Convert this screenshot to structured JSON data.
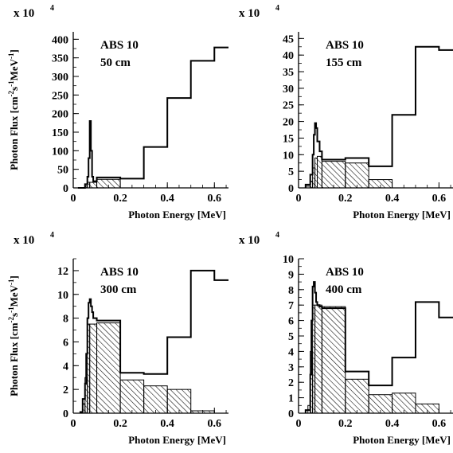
{
  "chart_data": [
    {
      "type": "histogram",
      "annotation_lines": [
        "ABS 10",
        "50 cm"
      ],
      "y_multiplier": "x 10",
      "y_exponent": "4",
      "ylabel": "Photon Flux  [cm-2s-1MeV-1]",
      "xlabel": "Photon Energy  [MeV]",
      "xlim": [
        0,
        0.66
      ],
      "ylim": [
        0,
        420
      ],
      "xticks": [
        0,
        0.2,
        0.4,
        0.6
      ],
      "xtick_labels": [
        "0",
        "0.2",
        "0.4",
        "0.6"
      ],
      "yticks": [
        0,
        50,
        100,
        150,
        200,
        250,
        300,
        350,
        400
      ],
      "ytick_labels": [
        "0",
        "50",
        "100",
        "150",
        "200",
        "250",
        "300",
        "350",
        "400"
      ],
      "series": [
        {
          "style": "solid line",
          "steps": [
            [
              0.02,
              0.05,
              0
            ],
            [
              0.05,
              0.06,
              10
            ],
            [
              0.06,
              0.065,
              30
            ],
            [
              0.065,
              0.07,
              80
            ],
            [
              0.07,
              0.075,
              180
            ],
            [
              0.075,
              0.08,
              100
            ],
            [
              0.08,
              0.085,
              30
            ],
            [
              0.085,
              0.1,
              18
            ],
            [
              0.1,
              0.2,
              28
            ],
            [
              0.2,
              0.3,
              25
            ],
            [
              0.3,
              0.4,
              110
            ],
            [
              0.4,
              0.5,
              242
            ],
            [
              0.5,
              0.6,
              342
            ],
            [
              0.6,
              0.66,
              378
            ]
          ]
        },
        {
          "style": "hatched",
          "steps": [
            [
              0.05,
              0.06,
              5
            ],
            [
              0.06,
              0.07,
              15
            ],
            [
              0.07,
              0.1,
              15
            ],
            [
              0.1,
              0.2,
              23
            ]
          ]
        }
      ]
    },
    {
      "type": "histogram",
      "annotation_lines": [
        "ABS 10",
        "155 cm"
      ],
      "y_multiplier": "x 10",
      "y_exponent": "4",
      "ylabel": "",
      "xlabel": "Photon Energy  [MeV]",
      "xlim": [
        0,
        0.66
      ],
      "ylim": [
        0,
        47
      ],
      "xticks": [
        0,
        0.2,
        0.4,
        0.6
      ],
      "xtick_labels": [
        "0",
        "0.2",
        "0.4",
        "0.6"
      ],
      "yticks": [
        0,
        5,
        10,
        15,
        20,
        25,
        30,
        35,
        40,
        45
      ],
      "ytick_labels": [
        "0",
        "5",
        "10",
        "15",
        "20",
        "25",
        "30",
        "35",
        "40",
        "45"
      ],
      "series": [
        {
          "style": "solid line",
          "steps": [
            [
              0.03,
              0.05,
              1
            ],
            [
              0.05,
              0.06,
              4
            ],
            [
              0.06,
              0.065,
              10
            ],
            [
              0.065,
              0.07,
              16
            ],
            [
              0.07,
              0.075,
              19.5
            ],
            [
              0.075,
              0.08,
              18
            ],
            [
              0.08,
              0.09,
              14
            ],
            [
              0.09,
              0.1,
              11
            ],
            [
              0.1,
              0.2,
              8.5
            ],
            [
              0.2,
              0.3,
              9
            ],
            [
              0.3,
              0.4,
              6.5
            ],
            [
              0.4,
              0.5,
              22
            ],
            [
              0.5,
              0.6,
              42.5
            ],
            [
              0.6,
              0.66,
              41.5
            ]
          ]
        },
        {
          "style": "hatched",
          "steps": [
            [
              0.03,
              0.05,
              0.5
            ],
            [
              0.05,
              0.06,
              2
            ],
            [
              0.06,
              0.07,
              6
            ],
            [
              0.07,
              0.08,
              9
            ],
            [
              0.08,
              0.1,
              9.5
            ],
            [
              0.1,
              0.2,
              8
            ],
            [
              0.2,
              0.3,
              7.5
            ],
            [
              0.3,
              0.4,
              2.5
            ]
          ]
        }
      ]
    },
    {
      "type": "histogram",
      "annotation_lines": [
        "ABS 10",
        "300 cm"
      ],
      "y_multiplier": "x 10",
      "y_exponent": "4",
      "ylabel": "Photon Flux  [cm-2s-1MeV-1]",
      "xlabel": "Photon Energy  [MeV]",
      "xlim": [
        0,
        0.66
      ],
      "ylim": [
        0,
        13
      ],
      "xticks": [
        0,
        0.2,
        0.4,
        0.6
      ],
      "xtick_labels": [
        "0",
        "0.2",
        "0.4",
        "0.6"
      ],
      "yticks": [
        0,
        2,
        4,
        6,
        8,
        10,
        12
      ],
      "ytick_labels": [
        "0",
        "2",
        "4",
        "6",
        "8",
        "10",
        "12"
      ],
      "series": [
        {
          "style": "solid line",
          "steps": [
            [
              0.03,
              0.04,
              0.1
            ],
            [
              0.04,
              0.05,
              1.2
            ],
            [
              0.05,
              0.055,
              2.5
            ],
            [
              0.055,
              0.06,
              5
            ],
            [
              0.06,
              0.065,
              8
            ],
            [
              0.065,
              0.07,
              9.3
            ],
            [
              0.07,
              0.075,
              9.6
            ],
            [
              0.075,
              0.08,
              9
            ],
            [
              0.08,
              0.085,
              8.5
            ],
            [
              0.085,
              0.1,
              8
            ],
            [
              0.1,
              0.2,
              7.8
            ],
            [
              0.2,
              0.3,
              3.4
            ],
            [
              0.3,
              0.4,
              3.3
            ],
            [
              0.4,
              0.5,
              6.4
            ],
            [
              0.5,
              0.6,
              12
            ],
            [
              0.6,
              0.66,
              11.2
            ]
          ]
        },
        {
          "style": "hatched",
          "steps": [
            [
              0.04,
              0.05,
              0.8
            ],
            [
              0.05,
              0.06,
              3
            ],
            [
              0.06,
              0.07,
              7.5
            ],
            [
              0.07,
              0.1,
              7.5
            ],
            [
              0.1,
              0.2,
              7.6
            ],
            [
              0.2,
              0.3,
              2.8
            ],
            [
              0.3,
              0.4,
              2.3
            ],
            [
              0.4,
              0.5,
              2
            ],
            [
              0.5,
              0.6,
              0.2
            ]
          ]
        }
      ]
    },
    {
      "type": "histogram",
      "annotation_lines": [
        "ABS 10",
        "400 cm"
      ],
      "y_multiplier": "x 10",
      "y_exponent": "4",
      "ylabel": "",
      "xlabel": "Photon Energy  [MeV]",
      "xlim": [
        0,
        0.66
      ],
      "ylim": [
        0,
        10
      ],
      "xticks": [
        0,
        0.2,
        0.4,
        0.6
      ],
      "xtick_labels": [
        "0",
        "0.2",
        "0.4",
        "0.6"
      ],
      "yticks": [
        0,
        1,
        2,
        3,
        4,
        5,
        6,
        7,
        8,
        9,
        10
      ],
      "ytick_labels": [
        "0",
        "1",
        "2",
        "3",
        "4",
        "5",
        "6",
        "7",
        "8",
        "9",
        "10"
      ],
      "series": [
        {
          "style": "solid line",
          "steps": [
            [
              0.03,
              0.05,
              0.2
            ],
            [
              0.05,
              0.055,
              2.5
            ],
            [
              0.055,
              0.06,
              6
            ],
            [
              0.06,
              0.065,
              8.2
            ],
            [
              0.065,
              0.07,
              8.5
            ],
            [
              0.07,
              0.075,
              7.8
            ],
            [
              0.075,
              0.08,
              7.2
            ],
            [
              0.08,
              0.09,
              7
            ],
            [
              0.09,
              0.1,
              6.9
            ],
            [
              0.1,
              0.2,
              6.8
            ],
            [
              0.2,
              0.3,
              2.7
            ],
            [
              0.3,
              0.4,
              1.8
            ],
            [
              0.4,
              0.5,
              3.6
            ],
            [
              0.5,
              0.6,
              7.2
            ],
            [
              0.6,
              0.66,
              6.2
            ]
          ]
        },
        {
          "style": "hatched",
          "steps": [
            [
              0.04,
              0.05,
              0.5
            ],
            [
              0.05,
              0.06,
              4
            ],
            [
              0.06,
              0.07,
              7
            ],
            [
              0.07,
              0.1,
              7
            ],
            [
              0.1,
              0.2,
              6.9
            ],
            [
              0.2,
              0.3,
              2.2
            ],
            [
              0.3,
              0.4,
              1.2
            ],
            [
              0.4,
              0.5,
              1.3
            ],
            [
              0.5,
              0.6,
              0.6
            ]
          ]
        }
      ]
    }
  ]
}
